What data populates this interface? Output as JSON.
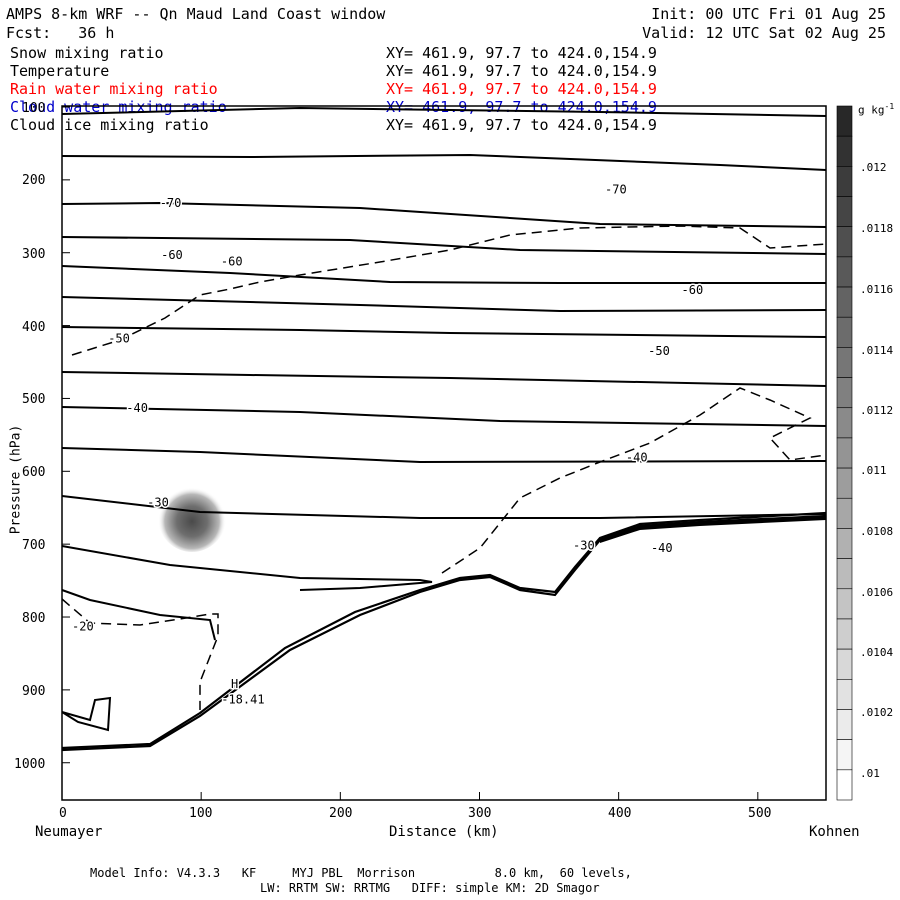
{
  "header": {
    "title": "AMPS 8-km WRF -- Qn Maud Land Coast window",
    "init": "Init: 00 UTC Fri 01 Aug 25",
    "fcst": "Fcst:   36 h",
    "valid": "Valid: 12 UTC Sat 02 Aug 25"
  },
  "fields": [
    {
      "name": "Snow mixing ratio",
      "xy": "XY= 461.9, 97.7 to 424.0,154.9",
      "color": "#000000"
    },
    {
      "name": "Temperature",
      "xy": "XY= 461.9, 97.7 to 424.0,154.9",
      "color": "#000000"
    },
    {
      "name": "Rain water mixing ratio",
      "xy": "XY= 461.9, 97.7 to 424.0,154.9",
      "color": "#ff0000"
    },
    {
      "name": "Cloud water mixing ratio",
      "xy": "XY= 461.9, 97.7 to 424.0,154.9",
      "color": "#0000cc"
    },
    {
      "name": "Cloud ice mixing ratio",
      "xy": "XY= 461.9, 97.7 to 424.0,154.9",
      "color": "#000000"
    }
  ],
  "axes": {
    "ylabel": "Pressure (hPa)",
    "xlabel": "Distance (km)",
    "left_endpoint": "Neumayer",
    "right_endpoint": "Kohnen",
    "y_ticks": [
      "100",
      "200",
      "300",
      "400",
      "500",
      "600",
      "700",
      "800",
      "900",
      "1000"
    ],
    "x_ticks": [
      "0",
      "100",
      "200",
      "300",
      "400",
      "500"
    ]
  },
  "colorbar": {
    "units": "g kg",
    "units_exp": "-1",
    "labels": [
      ".012",
      ".0118",
      ".0116",
      ".0114",
      ".0112",
      ".011",
      ".0108",
      ".0106",
      ".0104",
      ".0102",
      ".01"
    ]
  },
  "contour_labels": [
    {
      "text": "-70",
      "x": 78,
      "p": 232
    },
    {
      "text": "-70",
      "x": 398,
      "p": 213
    },
    {
      "text": "-60",
      "x": 79,
      "p": 303
    },
    {
      "text": "-60",
      "x": 122,
      "p": 312
    },
    {
      "text": "-60",
      "x": 453,
      "p": 351
    },
    {
      "text": "-50",
      "x": 41,
      "p": 418
    },
    {
      "text": "-50",
      "x": 429,
      "p": 435
    },
    {
      "text": "-40",
      "x": 54,
      "p": 513
    },
    {
      "text": "-40",
      "x": 413,
      "p": 581
    },
    {
      "text": "-40",
      "x": 431,
      "p": 705
    },
    {
      "text": "-30",
      "x": 69,
      "p": 643
    },
    {
      "text": "-30",
      "x": 375,
      "p": 702
    },
    {
      "text": "-20",
      "x": 15,
      "p": 813
    },
    {
      "text": "H",
      "x": 124,
      "p": 892
    },
    {
      "text": "-18.41",
      "x": 130,
      "p": 913
    }
  ],
  "footer": {
    "line1": "Model Info: V4.3.3   KF     MYJ PBL  Morrison           8.0 km,  60 levels,",
    "line2": "LW: RRTM SW: RRTMG   DIFF: simple KM: 2D Smagor"
  },
  "chart_data": {
    "type": "contour",
    "xlim": [
      0,
      549
    ],
    "ylim_hPa": [
      1050,
      100
    ],
    "isotherm_levels_C": [
      -70,
      -60,
      -50,
      -40,
      -30,
      -20
    ],
    "snow_max_location_label": "H",
    "snow_max_value_label": "-18.41"
  }
}
